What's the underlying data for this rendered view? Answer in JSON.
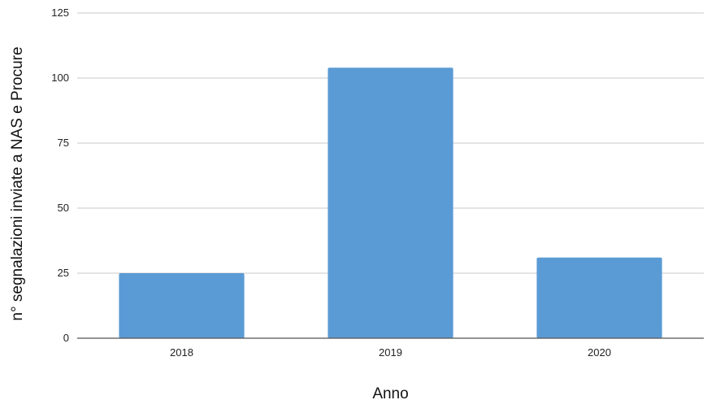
{
  "chart_data": {
    "type": "bar",
    "categories": [
      "2018",
      "2019",
      "2020"
    ],
    "values": [
      25,
      104,
      31
    ],
    "xlabel": "Anno",
    "ylabel": "n° segnalazioni inviate a NAS e Procure",
    "ylim": [
      0,
      125
    ],
    "yticks": [
      0,
      25,
      50,
      75,
      100,
      125
    ],
    "grid": true,
    "legend": "none",
    "bar_color": "#5b9bd5"
  }
}
